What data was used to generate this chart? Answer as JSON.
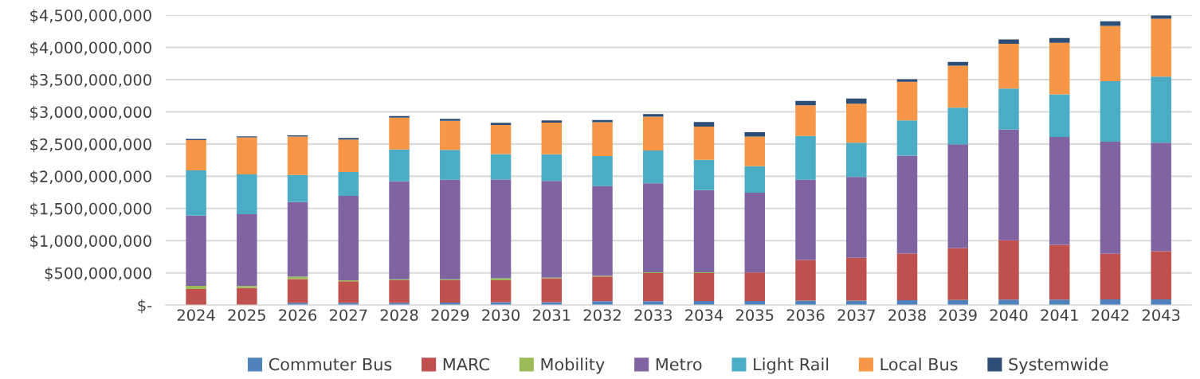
{
  "chart_data": {
    "type": "bar",
    "stacked": true,
    "categories": [
      "2024",
      "2025",
      "2026",
      "2027",
      "2028",
      "2029",
      "2030",
      "2031",
      "2032",
      "2033",
      "2034",
      "2035",
      "2036",
      "2037",
      "2038",
      "2039",
      "2040",
      "2041",
      "2042",
      "2043"
    ],
    "series": [
      {
        "name": "Commuter Bus",
        "color": "#4f81bd",
        "values": [
          0,
          0,
          35000000,
          35000000,
          35000000,
          40000000,
          45000000,
          45000000,
          60000000,
          60000000,
          65000000,
          65000000,
          70000000,
          70000000,
          75000000,
          80000000,
          85000000,
          85000000,
          90000000,
          90000000
        ]
      },
      {
        "name": "MARC",
        "color": "#c0504d",
        "values": [
          250000000,
          265000000,
          370000000,
          335000000,
          350000000,
          345000000,
          340000000,
          370000000,
          385000000,
          435000000,
          430000000,
          440000000,
          630000000,
          665000000,
          725000000,
          805000000,
          920000000,
          850000000,
          705000000,
          745000000
        ]
      },
      {
        "name": "Mobility",
        "color": "#9bbb59",
        "values": [
          50000000,
          30000000,
          35000000,
          15000000,
          15000000,
          15000000,
          30000000,
          12000000,
          12000000,
          15000000,
          15000000,
          null,
          null,
          null,
          null,
          null,
          null,
          null,
          null,
          null
        ]
      },
      {
        "name": "Metro",
        "color": "#8064a2",
        "values": [
          1090000000,
          1115000000,
          1160000000,
          1310000000,
          1520000000,
          1545000000,
          1535000000,
          1500000000,
          1390000000,
          1380000000,
          1275000000,
          1240000000,
          1245000000,
          1255000000,
          1520000000,
          1610000000,
          1720000000,
          1675000000,
          1740000000,
          1685000000
        ]
      },
      {
        "name": "Light Rail",
        "color": "#4bacc6",
        "values": [
          700000000,
          620000000,
          420000000,
          370000000,
          495000000,
          465000000,
          395000000,
          415000000,
          465000000,
          510000000,
          470000000,
          410000000,
          680000000,
          530000000,
          545000000,
          570000000,
          635000000,
          660000000,
          940000000,
          1025000000
        ]
      },
      {
        "name": "Local Bus",
        "color": "#f79646",
        "values": [
          470000000,
          575000000,
          595000000,
          505000000,
          495000000,
          450000000,
          450000000,
          490000000,
          525000000,
          525000000,
          515000000,
          460000000,
          475000000,
          605000000,
          600000000,
          650000000,
          695000000,
          800000000,
          860000000,
          900000000
        ]
      },
      {
        "name": "Systemwide",
        "color": "#2c4d75",
        "values": [
          20000000,
          15000000,
          20000000,
          25000000,
          25000000,
          30000000,
          35000000,
          35000000,
          35000000,
          40000000,
          70000000,
          70000000,
          70000000,
          80000000,
          40000000,
          60000000,
          70000000,
          75000000,
          70000000,
          50000000
        ]
      }
    ],
    "ylim": [
      0,
      4500000000
    ],
    "yticks": [
      {
        "value": 0,
        "label": "$-"
      },
      {
        "value": 500000000,
        "label": "$500,000,000"
      },
      {
        "value": 1000000000,
        "label": "$1,000,000,000"
      },
      {
        "value": 1500000000,
        "label": "$1,500,000,000"
      },
      {
        "value": 2000000000,
        "label": "$2,000,000,000"
      },
      {
        "value": 2500000000,
        "label": "$2,500,000,000"
      },
      {
        "value": 3000000000,
        "label": "$3,000,000,000"
      },
      {
        "value": 3500000000,
        "label": "$3,500,000,000"
      },
      {
        "value": 4000000000,
        "label": "$4,000,000,000"
      },
      {
        "value": 4500000000,
        "label": "$4,500,000,000"
      }
    ],
    "grid": "y",
    "legend": "bottom"
  }
}
